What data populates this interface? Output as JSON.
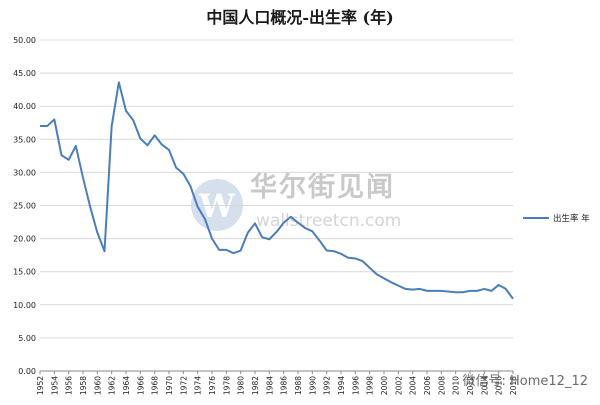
{
  "chart_data": {
    "type": "line",
    "title": "中国人口概况-出生率 (年)",
    "xlabel": "",
    "ylabel": "",
    "ylim": [
      0,
      50
    ],
    "ytick_step": 5,
    "grid": true,
    "legend_position": "right",
    "x_tick_step": 2,
    "x": [
      1952,
      1953,
      1954,
      1955,
      1956,
      1957,
      1958,
      1959,
      1960,
      1961,
      1962,
      1963,
      1964,
      1965,
      1966,
      1967,
      1968,
      1969,
      1970,
      1971,
      1972,
      1973,
      1974,
      1975,
      1976,
      1977,
      1978,
      1979,
      1980,
      1981,
      1982,
      1983,
      1984,
      1985,
      1986,
      1987,
      1988,
      1989,
      1990,
      1991,
      1992,
      1993,
      1994,
      1995,
      1996,
      1997,
      1998,
      1999,
      2000,
      2001,
      2002,
      2003,
      2004,
      2005,
      2006,
      2007,
      2008,
      2009,
      2010,
      2011,
      2012,
      2013,
      2014,
      2015,
      2016,
      2017,
      2018
    ],
    "series": [
      {
        "name": "出生率 年",
        "color": "#4a7ebb",
        "values": [
          37.0,
          37.0,
          38.0,
          32.6,
          31.9,
          34.0,
          29.2,
          24.8,
          20.9,
          18.1,
          37.0,
          43.6,
          39.3,
          37.9,
          35.1,
          34.1,
          35.6,
          34.2,
          33.4,
          30.7,
          29.8,
          27.9,
          24.8,
          23.0,
          20.0,
          18.3,
          18.3,
          17.8,
          18.2,
          20.9,
          22.3,
          20.2,
          19.9,
          21.0,
          22.4,
          23.3,
          22.4,
          21.6,
          21.1,
          19.7,
          18.2,
          18.1,
          17.7,
          17.1,
          17.0,
          16.6,
          15.6,
          14.6,
          14.0,
          13.4,
          12.9,
          12.4,
          12.3,
          12.4,
          12.1,
          12.1,
          12.1,
          12.0,
          11.9,
          11.9,
          12.1,
          12.1,
          12.4,
          12.1,
          13.0,
          12.4,
          10.9
        ]
      }
    ]
  },
  "watermark": {
    "brand": "华尔街见闻",
    "domain": "wallstreetcn.com",
    "logo_letter": "W"
  },
  "footer_watermark": "微信号: Home12_12"
}
